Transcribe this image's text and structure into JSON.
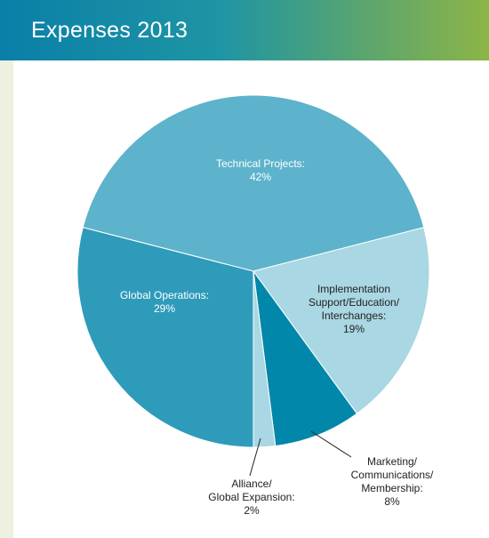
{
  "chart_data": {
    "type": "pie",
    "title": "Expenses 2013",
    "categories": [
      "Technical Projects:",
      "Implementation Support/Education/ Interchanges:",
      "Marketing/ Communications/ Membership:",
      "Alliance/ Global Expansion:",
      "Global Operations:"
    ],
    "values": [
      42,
      19,
      8,
      2,
      29
    ],
    "value_labels": [
      "42%",
      "19%",
      "8%",
      "2%",
      "29%"
    ],
    "colors": [
      "#5db3cb",
      "#a9d7e3",
      "#0087a9",
      "#a9d7e3",
      "#2f9bba"
    ]
  }
}
